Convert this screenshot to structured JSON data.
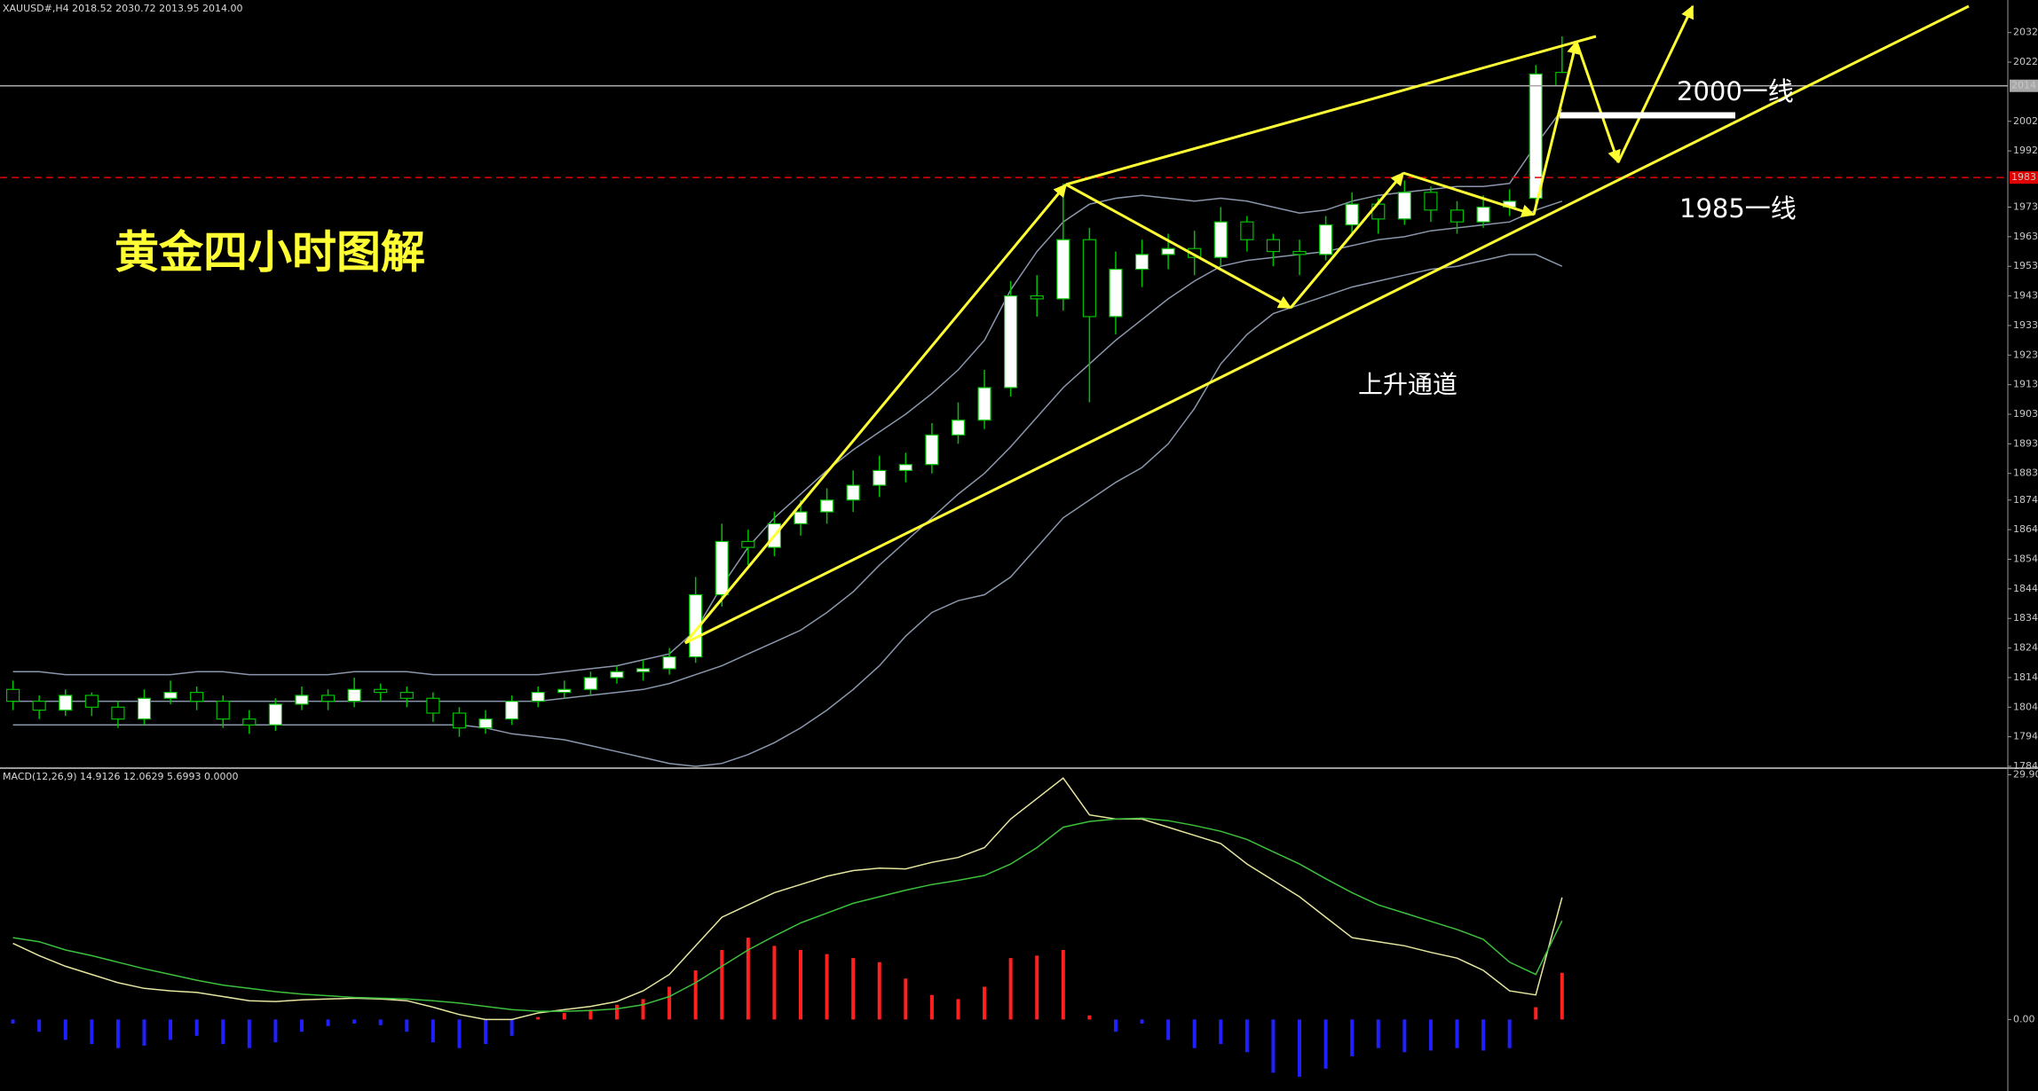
{
  "chart_data": [
    {
      "type": "candlestick",
      "title": "XAUUSD#,H4  2018.52 2030.72 2013.95 2014.00",
      "annotations": [
        "黄金四小时图解",
        "2000一线",
        "1985一线",
        "上升通道"
      ],
      "open": [
        1810,
        1806,
        1803,
        1808,
        1804,
        1800,
        1807,
        1809,
        1806,
        1800,
        1798,
        1805,
        1808,
        1806,
        1810,
        1809,
        1807,
        1802,
        1797,
        1800,
        1806,
        1809,
        1810,
        1814,
        1816,
        1817,
        1821,
        1842,
        1860,
        1858,
        1866,
        1870,
        1874,
        1879,
        1884,
        1886,
        1896,
        1901,
        1912,
        1943,
        1942,
        1962,
        1936,
        1952,
        1957,
        1959,
        1956,
        1968,
        1962,
        1958,
        1957,
        1967,
        1974,
        1969,
        1978,
        1972,
        1968,
        1973,
        1976,
        2018.52
      ],
      "high": [
        1813,
        1808,
        1810,
        1809,
        1806,
        1810,
        1813,
        1811,
        1808,
        1803,
        1807,
        1811,
        1810,
        1814,
        1812,
        1811,
        1809,
        1804,
        1803,
        1808,
        1811,
        1813,
        1816,
        1818,
        1820,
        1824,
        1848,
        1866,
        1864,
        1870,
        1874,
        1878,
        1884,
        1889,
        1890,
        1900,
        1907,
        1918,
        1948,
        1950,
        1981,
        1966,
        1958,
        1962,
        1964,
        1965,
        1973,
        1970,
        1964,
        1962,
        1970,
        1978,
        1976,
        1982,
        1980,
        1975,
        1977,
        1979,
        2021,
        2030.72
      ],
      "low": [
        1803,
        1800,
        1801,
        1801,
        1797,
        1798,
        1805,
        1803,
        1797,
        1795,
        1796,
        1803,
        1803,
        1804,
        1806,
        1804,
        1799,
        1794,
        1795,
        1798,
        1804,
        1807,
        1808,
        1812,
        1813,
        1815,
        1819,
        1838,
        1852,
        1855,
        1862,
        1866,
        1870,
        1875,
        1880,
        1883,
        1893,
        1898,
        1909,
        1936,
        1938,
        1907,
        1930,
        1946,
        1952,
        1950,
        1953,
        1958,
        1953,
        1950,
        1955,
        1964,
        1964,
        1967,
        1968,
        1964,
        1966,
        1970,
        1974,
        2013.95
      ],
      "close": [
        1806,
        1803,
        1808,
        1804,
        1800,
        1807,
        1809,
        1806,
        1800,
        1798,
        1805,
        1808,
        1806,
        1810,
        1809,
        1807,
        1802,
        1797,
        1800,
        1806,
        1809,
        1810,
        1814,
        1816,
        1817,
        1821,
        1842,
        1860,
        1858,
        1866,
        1870,
        1874,
        1879,
        1884,
        1886,
        1896,
        1901,
        1912,
        1943,
        1942,
        1962,
        1936,
        1952,
        1957,
        1959,
        1956,
        1968,
        1962,
        1958,
        1957,
        1967,
        1974,
        1969,
        1978,
        1972,
        1968,
        1973,
        1975,
        2018,
        2014.0
      ],
      "up_color": "#ffffff",
      "down_color": "#000000",
      "wick_color": "#00c000",
      "bands": [
        {
          "color": "#8a96ac",
          "values": [
            1816,
            1816,
            1815,
            1815,
            1815,
            1815,
            1815,
            1816,
            1816,
            1815,
            1815,
            1815,
            1815,
            1816,
            1816,
            1816,
            1815,
            1815,
            1815,
            1815,
            1815,
            1816,
            1817,
            1818,
            1820,
            1822,
            1830,
            1845,
            1858,
            1868,
            1876,
            1884,
            1891,
            1897,
            1903,
            1910,
            1918,
            1928,
            1945,
            1958,
            1968,
            1974,
            1976,
            1977,
            1976,
            1975,
            1976,
            1975,
            1973,
            1971,
            1972,
            1975,
            1977,
            1978,
            1979,
            1980,
            1980,
            1981,
            1994,
            2006
          ]
        },
        {
          "color": "#8a96ac",
          "values": [
            1806,
            1806,
            1806,
            1806,
            1806,
            1806,
            1806,
            1806,
            1806,
            1806,
            1806,
            1806,
            1806,
            1806,
            1806,
            1806,
            1806,
            1806,
            1806,
            1806,
            1806,
            1807,
            1808,
            1809,
            1810,
            1812,
            1815,
            1818,
            1822,
            1826,
            1830,
            1836,
            1843,
            1852,
            1860,
            1868,
            1876,
            1883,
            1892,
            1902,
            1912,
            1920,
            1928,
            1935,
            1942,
            1948,
            1953,
            1955,
            1956,
            1957,
            1958,
            1960,
            1962,
            1963,
            1965,
            1966,
            1967,
            1968,
            1972,
            1975
          ]
        },
        {
          "color": "#8a96ac",
          "values": [
            1798,
            1798,
            1798,
            1798,
            1798,
            1798,
            1798,
            1798,
            1798,
            1798,
            1798,
            1798,
            1798,
            1798,
            1798,
            1798,
            1798,
            1798,
            1797,
            1795,
            1794,
            1793,
            1791,
            1789,
            1787,
            1785,
            1784,
            1785,
            1788,
            1792,
            1797,
            1803,
            1810,
            1818,
            1828,
            1836,
            1840,
            1842,
            1848,
            1858,
            1868,
            1874,
            1880,
            1885,
            1893,
            1905,
            1920,
            1930,
            1937,
            1940,
            1943,
            1946,
            1948,
            1950,
            1952,
            1953,
            1955,
            1957,
            1957,
            1953
          ]
        }
      ],
      "hlines": [
        {
          "value": 2014,
          "label": "2014",
          "color": "#a8a8a8",
          "dashed": false
        },
        {
          "value": 1983,
          "label": "1983",
          "color": "#e00000",
          "dashed": true
        }
      ],
      "ylim": [
        1784,
        2043
      ],
      "yticks": [
        2032,
        2022,
        2002,
        1992,
        1973,
        1963,
        1953,
        1943,
        1933,
        1923,
        1913,
        1903,
        1893,
        1883,
        1874,
        1864,
        1854,
        1844,
        1834,
        1824,
        1814,
        1804,
        1794,
        1784
      ]
    },
    {
      "type": "macd",
      "title": "MACD(12,26,9) 14.9126 12.0629 5.6993 0.0000",
      "histogram": {
        "up_color": "#ff2020",
        "down_color": "#2020ff",
        "values": [
          -0.5,
          -1.5,
          -2.5,
          -3,
          -3.5,
          -3.2,
          -2.5,
          -2,
          -3,
          -3.5,
          -2.8,
          -1.5,
          -0.8,
          -0.5,
          -0.7,
          -1.5,
          -2.8,
          -3.5,
          -3,
          -2,
          0.3,
          0.8,
          1.2,
          1.8,
          2.5,
          4,
          6,
          8.5,
          10,
          9,
          8.5,
          8,
          7.5,
          7,
          5,
          3,
          2.5,
          4,
          7.5,
          7.8,
          8.5,
          0.5,
          -1.5,
          -0.5,
          -2.5,
          -3.5,
          -3,
          -4,
          -6.5,
          -7,
          -6,
          -4.5,
          -3.5,
          -4,
          -3.8,
          -3.5,
          -3.8,
          -3.5,
          1.5,
          5.6993
        ]
      },
      "series": [
        {
          "color": "#e6e6a0",
          "values": [
            9.3,
            7.8,
            6.5,
            5.5,
            4.5,
            3.8,
            3.5,
            3.3,
            2.8,
            2.3,
            2.2,
            2.4,
            2.5,
            2.6,
            2.5,
            2.3,
            1.5,
            0.6,
            0,
            0,
            0.8,
            1.2,
            1.6,
            2.2,
            3.5,
            5.5,
            9,
            12.5,
            14,
            15.5,
            16.5,
            17.5,
            18.2,
            18.5,
            18.4,
            19.2,
            19.8,
            21,
            24.5,
            27,
            29.5,
            25,
            24.5,
            24.5,
            23.5,
            22.5,
            21.5,
            19,
            17,
            15,
            12.5,
            10,
            9.5,
            9,
            8.2,
            7.5,
            6,
            3.5,
            3,
            14.9126
          ]
        },
        {
          "color": "#3cc03c",
          "values": [
            10,
            9.5,
            8.5,
            7.8,
            7,
            6.2,
            5.5,
            4.8,
            4.2,
            3.8,
            3.4,
            3.1,
            2.9,
            2.7,
            2.6,
            2.5,
            2.3,
            2,
            1.6,
            1.2,
            1,
            1,
            1.1,
            1.3,
            1.8,
            2.8,
            4.5,
            6.5,
            8.5,
            10.2,
            11.8,
            13,
            14.2,
            15,
            15.8,
            16.5,
            17,
            17.6,
            19,
            21,
            23.5,
            24.2,
            24.5,
            24.6,
            24.3,
            23.7,
            23,
            22,
            20.5,
            19,
            17.2,
            15.5,
            14,
            13,
            12,
            11,
            9.8,
            7,
            5.5,
            12.0629
          ]
        }
      ],
      "ylim": [
        -8.74,
        30.5
      ],
      "yticks": [
        {
          "value": 29.9,
          "label": "29.90"
        },
        {
          "value": 0,
          "label": "0.00"
        }
      ]
    }
  ]
}
